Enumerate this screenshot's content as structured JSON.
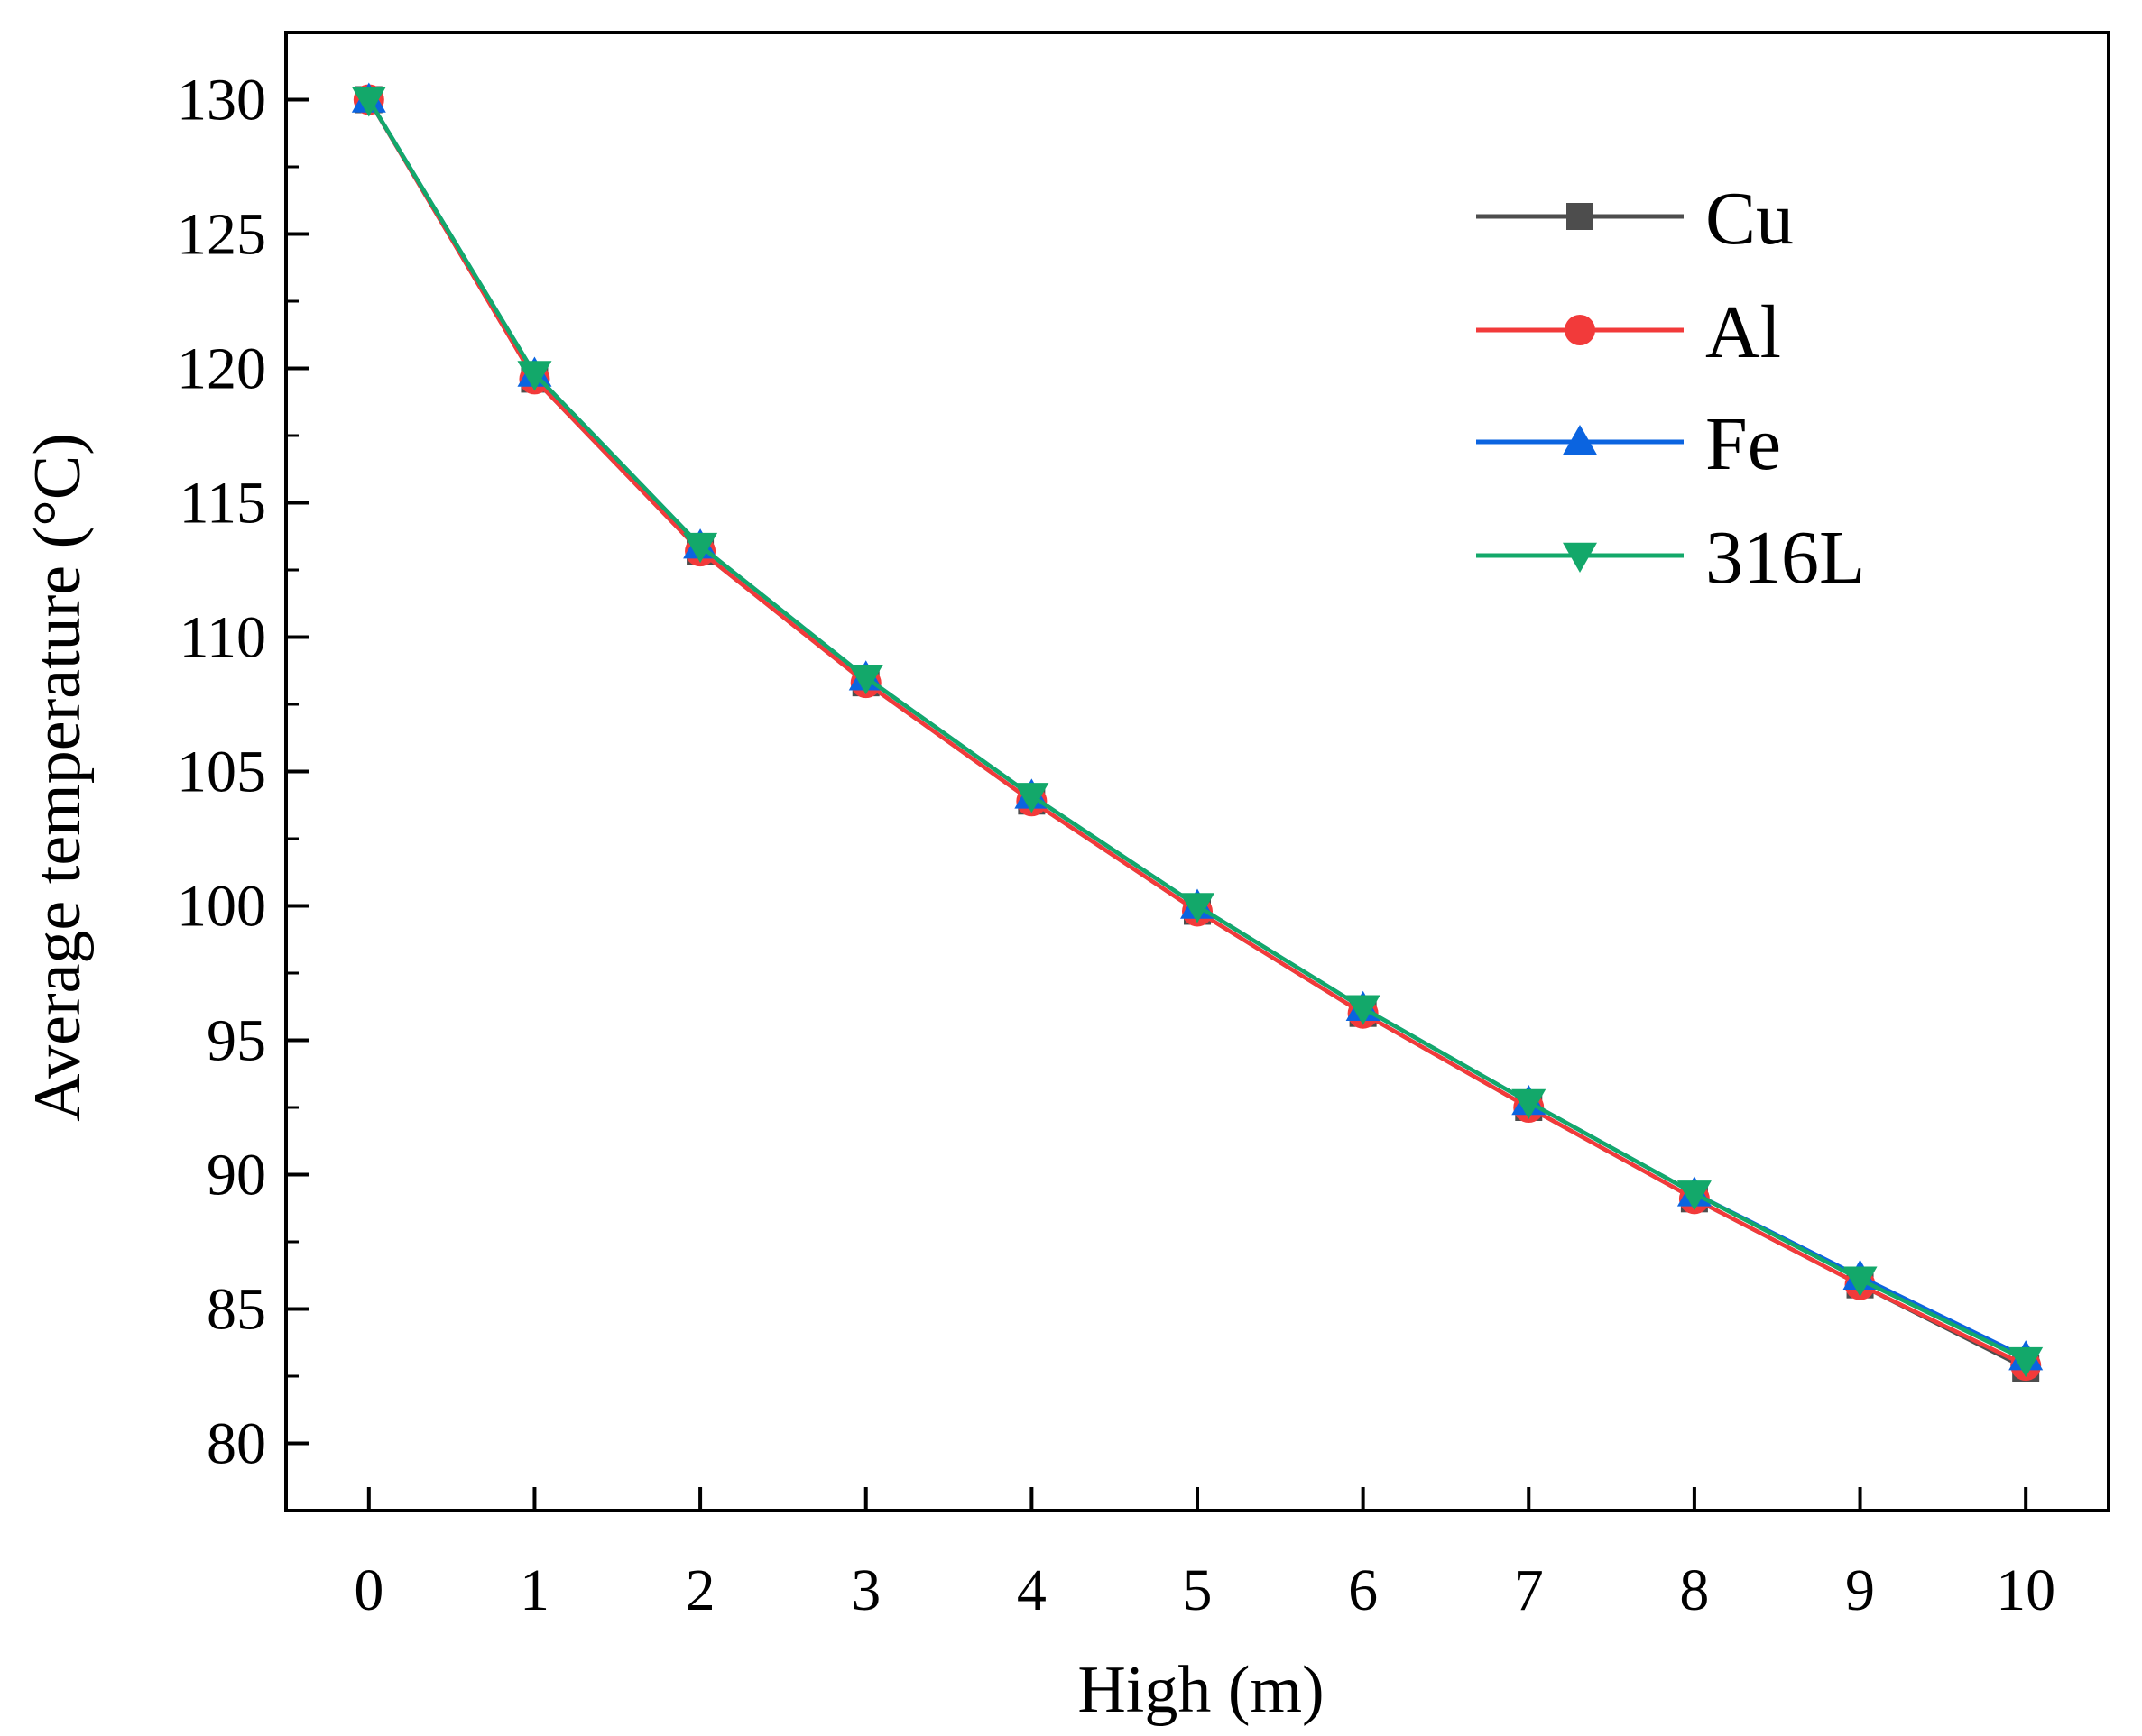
{
  "chart_data": {
    "type": "line",
    "title": "",
    "xlabel": "High (m)",
    "ylabel": "Average temperature (°C)",
    "x": [
      0,
      1,
      2,
      3,
      4,
      5,
      6,
      7,
      8,
      9,
      10
    ],
    "xlim": [
      -0.5,
      10.5
    ],
    "ylim": [
      77.5,
      132.5
    ],
    "xticks": [
      "0",
      "1",
      "2",
      "3",
      "4",
      "5",
      "6",
      "7",
      "8",
      "9",
      "10"
    ],
    "yticks": [
      "80",
      "85",
      "90",
      "95",
      "100",
      "105",
      "110",
      "115",
      "120",
      "125",
      "130"
    ],
    "grid": false,
    "legend_position": "top-right",
    "series": [
      {
        "name": "Cu",
        "color": "#4d4d4d",
        "marker": "square",
        "values": [
          130.0,
          119.6,
          113.2,
          108.3,
          103.9,
          99.8,
          96.0,
          92.5,
          89.1,
          85.9,
          82.8
        ]
      },
      {
        "name": "Al",
        "color": "#f23a3a",
        "marker": "circle",
        "values": [
          130.0,
          119.6,
          113.2,
          108.3,
          103.9,
          99.8,
          96.0,
          92.5,
          89.1,
          85.9,
          82.9
        ]
      },
      {
        "name": "Fe",
        "color": "#0b64e0",
        "marker": "triangle-up",
        "values": [
          130.0,
          119.8,
          113.4,
          108.5,
          104.1,
          100.0,
          96.2,
          92.7,
          89.3,
          86.2,
          83.2
        ]
      },
      {
        "name": "316L",
        "color": "#13a86a",
        "marker": "triangle-down",
        "values": [
          130.0,
          119.8,
          113.4,
          108.5,
          104.1,
          100.0,
          96.2,
          92.7,
          89.3,
          86.1,
          83.1
        ]
      }
    ]
  }
}
